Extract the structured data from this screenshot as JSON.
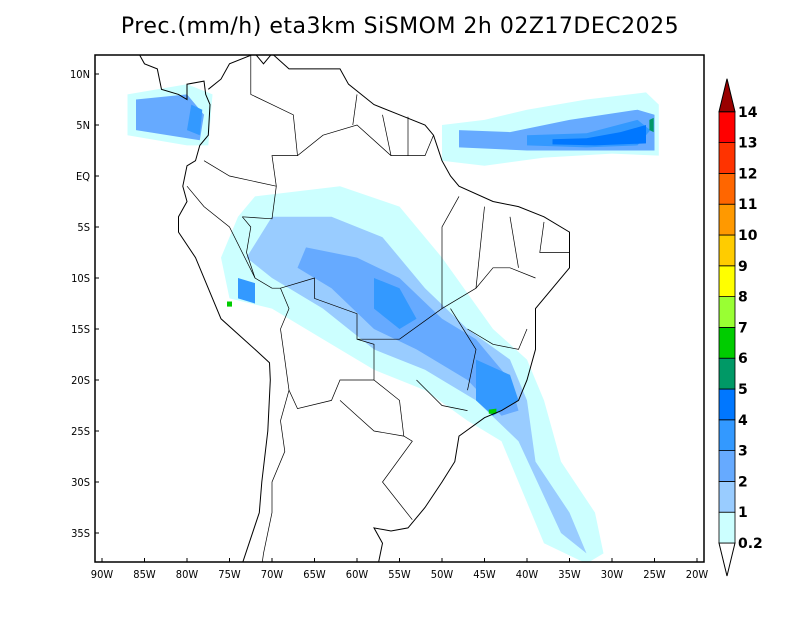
{
  "title": "Prec.(mm/h) eta3km SiSMOM 2h 02Z17DEC2025",
  "lat_labels": [
    "10N",
    "5N",
    "EQ",
    "5S",
    "10S",
    "15S",
    "20S",
    "25S",
    "30S",
    "35S"
  ],
  "lon_labels": [
    "90W",
    "85W",
    "80W",
    "75W",
    "70W",
    "65W",
    "60W",
    "55W",
    "50W",
    "45W",
    "40W",
    "35W",
    "30W",
    "25W",
    "20W"
  ],
  "colorbar": {
    "labels": [
      "0.2",
      "1",
      "2",
      "3",
      "4",
      "5",
      "6",
      "7",
      "8",
      "9",
      "10",
      "11",
      "12",
      "13",
      "14"
    ],
    "colors": [
      "#ccffff",
      "#99ccff",
      "#66aaff",
      "#3399ff",
      "#0077ff",
      "#009966",
      "#00cc00",
      "#99ff33",
      "#ffff00",
      "#ffcc00",
      "#ff9900",
      "#ff6600",
      "#ff3300",
      "#ff0000"
    ],
    "over_color": "#990000",
    "under_color": "#ffffff"
  }
}
